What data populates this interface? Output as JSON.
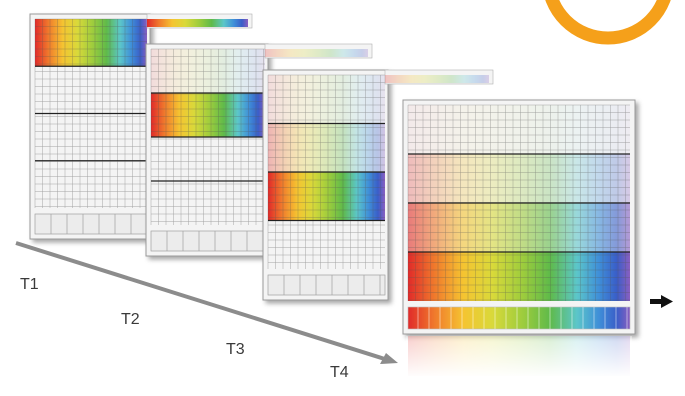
{
  "time_labels": [
    "T1",
    "T2",
    "T3",
    "T4"
  ],
  "frames": [
    {
      "name": "frame-t1",
      "colored_band": 0,
      "bottom_strip": "cells"
    },
    {
      "name": "frame-t2",
      "colored_band": 1,
      "bottom_strip": "cells"
    },
    {
      "name": "frame-t3",
      "colored_band": 2,
      "bottom_strip": "cells"
    },
    {
      "name": "frame-t4",
      "colored_band": 3,
      "bottom_strip": "spectrum"
    }
  ],
  "spectrum_colors": [
    "#e02a2a",
    "#f07a2c",
    "#f5c431",
    "#d9d93a",
    "#9ccc3d",
    "#5fba4a",
    "#5cc6c9",
    "#3f8fd8",
    "#3a5ec8",
    "#8a5fc0"
  ],
  "colors": {
    "accent_ring": "#f5a01a",
    "axis": "#8c8c8c",
    "arrow": "#111111",
    "frame_border": "#9a9a9a",
    "grid_line": "#555555",
    "band_divider": "#222222"
  },
  "icons": {
    "next-arrow": "right-arrow-icon",
    "accent": "orange-ring-icon"
  }
}
